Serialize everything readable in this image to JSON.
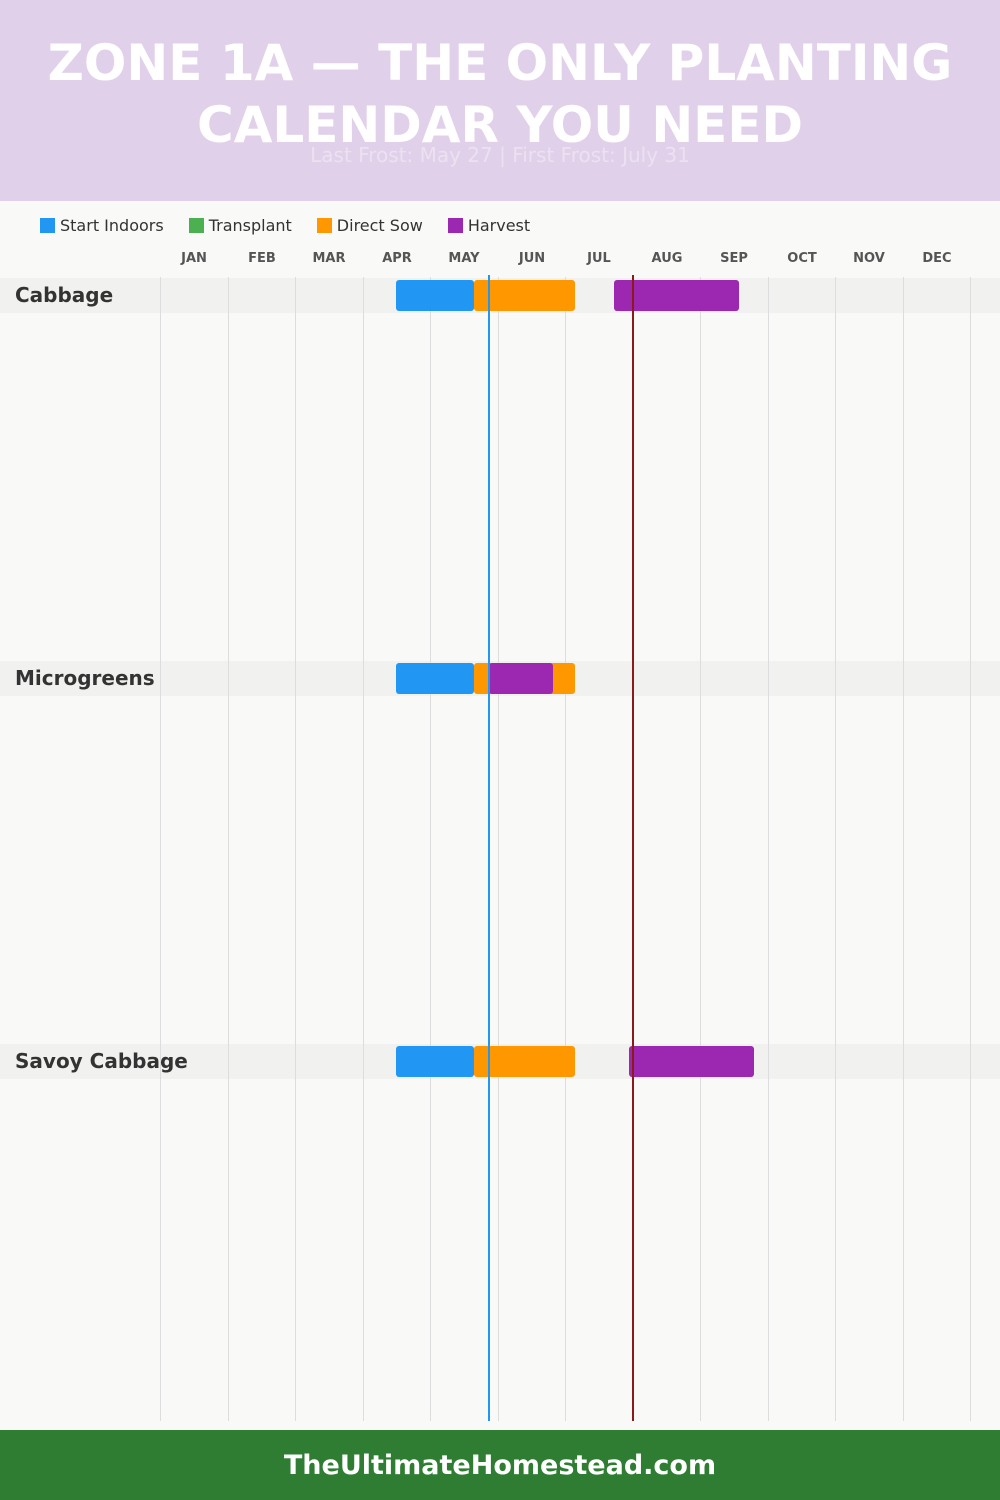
{
  "header": {
    "title_line1": "ZONE 1A — THE ONLY PLANTING",
    "title_line2": "CALENDAR YOU NEED",
    "subtitle": "Last Frost: May 27 | First Frost: July 31"
  },
  "footer": {
    "text": "TheUltimateHomestead.com"
  },
  "chart_data": {
    "type": "gantt",
    "months": [
      "JAN",
      "FEB",
      "MAR",
      "APR",
      "MAY",
      "JUN",
      "JUL",
      "AUG",
      "SEP",
      "OCT",
      "NOV",
      "DEC"
    ],
    "legend": [
      {
        "key": "start_indoors",
        "label": "Start Indoors",
        "color": "#2196f3"
      },
      {
        "key": "transplant",
        "label": "Transplant",
        "color": "#4caf50"
      },
      {
        "key": "direct_sow",
        "label": "Direct Sow",
        "color": "#ff9800"
      },
      {
        "key": "harvest",
        "label": "Harvest",
        "color": "#9c27b0"
      }
    ],
    "frost": {
      "last_frost": {
        "label": "Last Frost",
        "date": "May 27",
        "month": 4.87,
        "color": "#2196f3"
      },
      "first_frost": {
        "label": "First Frost",
        "date": "July 31",
        "month": 7.0,
        "color": "#8b1a1a"
      }
    },
    "crops": [
      {
        "name": "Cabbage",
        "bars": [
          {
            "type": "start_indoors",
            "start": 3.5,
            "end": 4.65
          },
          {
            "type": "direct_sow",
            "start": 4.65,
            "end": 6.15
          },
          {
            "type": "harvest",
            "start": 6.72,
            "end": 8.58
          }
        ]
      },
      {
        "name": "Microgreens",
        "bars": [
          {
            "type": "start_indoors",
            "start": 3.5,
            "end": 4.65
          },
          {
            "type": "direct_sow",
            "start": 4.65,
            "end": 6.15
          },
          {
            "type": "harvest",
            "start": 4.87,
            "end": 5.82
          }
        ]
      },
      {
        "name": "Savoy Cabbage",
        "bars": [
          {
            "type": "start_indoors",
            "start": 3.5,
            "end": 4.65
          },
          {
            "type": "direct_sow",
            "start": 4.65,
            "end": 6.15
          },
          {
            "type": "harvest",
            "start": 6.95,
            "end": 8.8
          }
        ]
      }
    ]
  }
}
